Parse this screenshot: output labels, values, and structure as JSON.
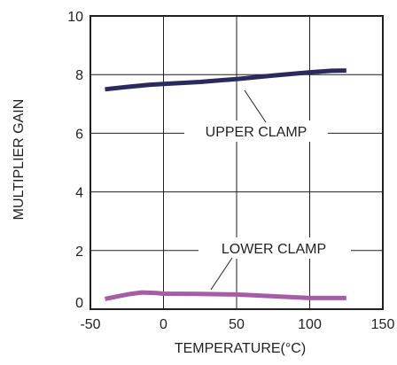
{
  "chart_data": {
    "type": "line",
    "xlabel": "TEMPERATURE(°C)",
    "ylabel": "MULTIPLIER GAIN",
    "xlim": [
      -50,
      150
    ],
    "ylim": [
      0,
      10
    ],
    "x_ticks": [
      "-50",
      "0",
      "50",
      "100",
      "150"
    ],
    "y_ticks": [
      "0",
      "2",
      "4",
      "6",
      "8",
      "10"
    ],
    "grid": true,
    "series": [
      {
        "name": "UPPER CLAMP",
        "color": "#2b2a5e",
        "x": [
          -40,
          -25,
          -10,
          0,
          25,
          50,
          75,
          100,
          115,
          125
        ],
        "y": [
          7.5,
          7.58,
          7.65,
          7.68,
          7.75,
          7.85,
          7.97,
          8.08,
          8.13,
          8.14
        ]
      },
      {
        "name": "LOWER CLAMP",
        "color": "#a55da8",
        "x": [
          -40,
          -25,
          -15,
          -5,
          0,
          25,
          50,
          75,
          100,
          125
        ],
        "y": [
          0.35,
          0.5,
          0.57,
          0.55,
          0.53,
          0.52,
          0.5,
          0.44,
          0.38,
          0.38
        ]
      }
    ],
    "annotations": [
      {
        "text": "UPPER CLAMP",
        "series": "UPPER CLAMP"
      },
      {
        "text": "LOWER CLAMP",
        "series": "LOWER CLAMP"
      }
    ]
  }
}
